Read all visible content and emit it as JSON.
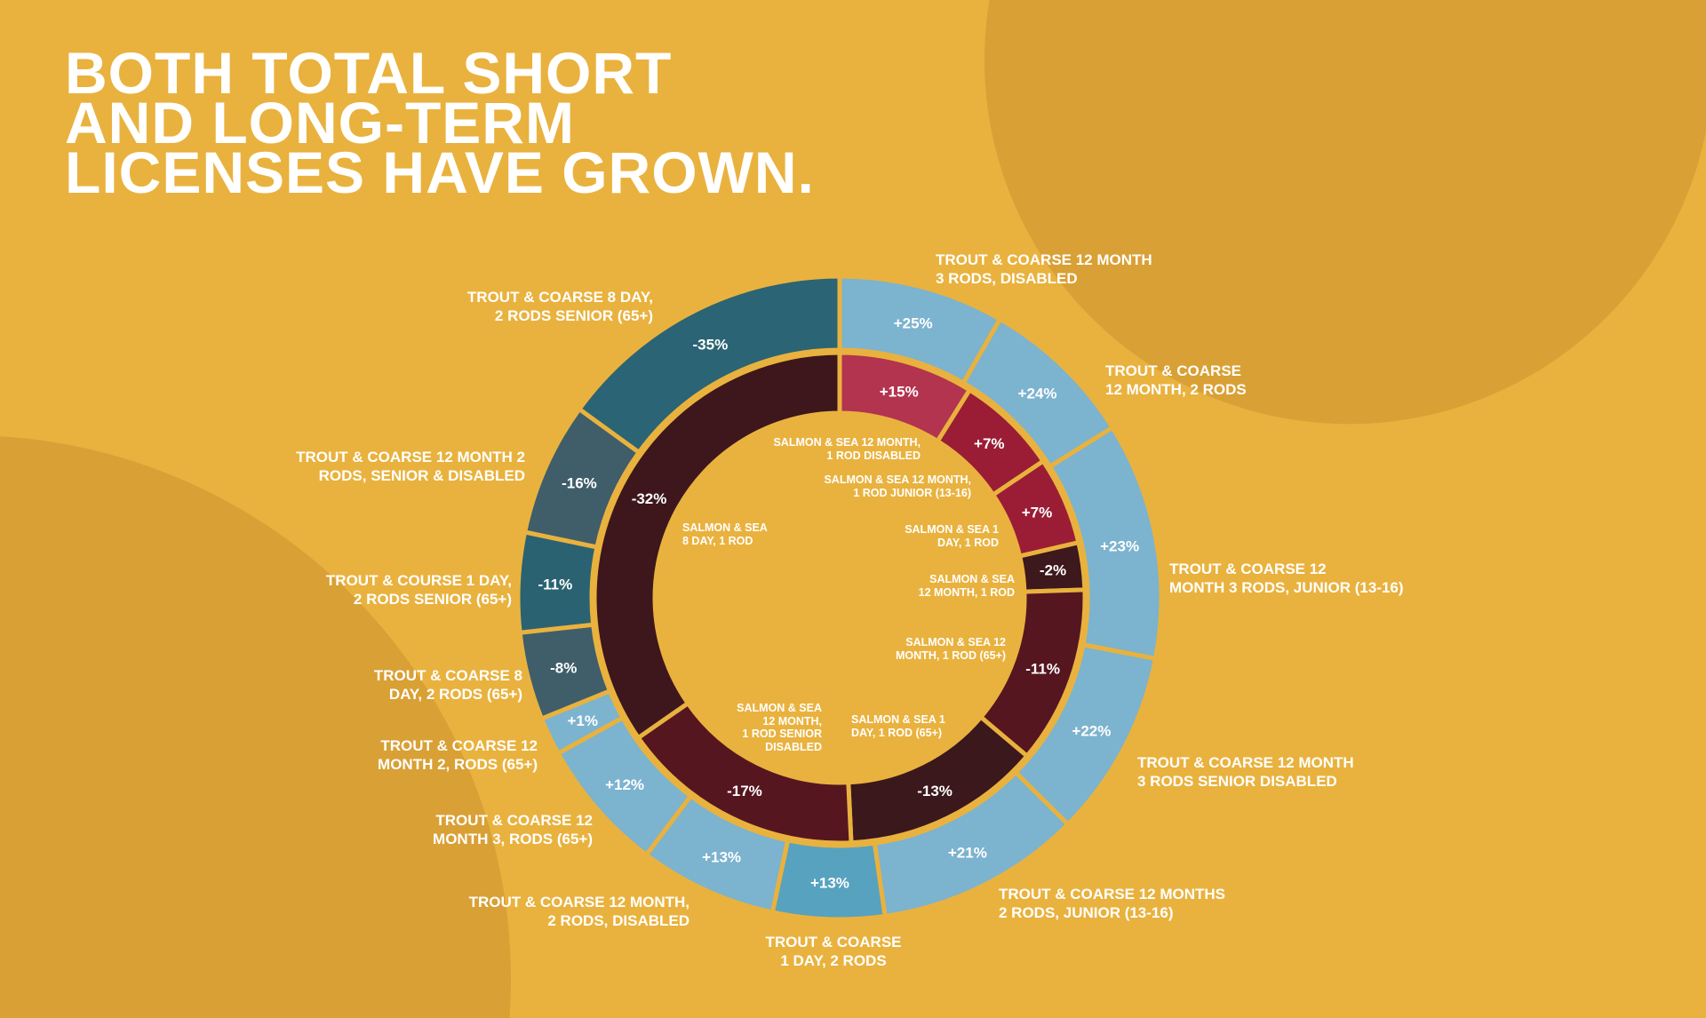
{
  "title": [
    "BOTH TOTAL SHORT",
    "AND LONG-TERM",
    "LICENSES HAVE GROWN."
  ],
  "colors": {
    "background": "#E9B23E",
    "circle": "#D9A035",
    "text": "#FFFFFF"
  },
  "chart_data": {
    "type": "pie",
    "subtype": "double donut",
    "title": "BOTH TOTAL SHORT AND LONG-TERM LICENSES HAVE GROWN.",
    "outer_ring": [
      {
        "label": "TROUT & COARSE 12 MONTH\n3 RODS, DISABLED",
        "change": "+25%",
        "share": 0.083,
        "color": "#7CB3CF"
      },
      {
        "label": "TROUT & COARSE\n12 MONTH, 2 RODS",
        "change": "+24%",
        "share": 0.078,
        "color": "#7CB3CF"
      },
      {
        "label": "TROUT & COARSE 12\nMONTH 3 RODS, JUNIOR (13-16)",
        "change": "+23%",
        "share": 0.119,
        "color": "#7CB3CF"
      },
      {
        "label": "TROUT & COARSE 12 MONTH\n3 RODS SENIOR DISABLED",
        "change": "+22%",
        "share": 0.094,
        "color": "#7CB3CF"
      },
      {
        "label": "TROUT & COARSE 12 MONTHS\n2 RODS, JUNIOR (13-16)",
        "change": "+21%",
        "share": 0.103,
        "color": "#7CB3CF"
      },
      {
        "label": "TROUT & COARSE\n1 DAY, 2 RODS",
        "change": "+13%",
        "share": 0.056,
        "color": "#57A2BE"
      },
      {
        "label": "TROUT & COARSE 12 MONTH,\n2 RODS, DISABLED",
        "change": "+13%",
        "share": 0.069,
        "color": "#7CB3CF"
      },
      {
        "label": "TROUT & COARSE 12\nMONTH 3, RODS (65+)",
        "change": "+12%",
        "share": 0.067,
        "color": "#7CB3CF"
      },
      {
        "label": "TROUT & COARSE 12\nMONTH 2, RODS (65+)",
        "change": "+1%",
        "share": 0.019,
        "color": "#7CB3CF"
      },
      {
        "label": "TROUT & COARSE 8\nDAY, 2 RODS (65+)",
        "change": "-8%",
        "share": 0.044,
        "color": "#3F5E6A"
      },
      {
        "label": "TROUT & COURSE 1 DAY,\n2 RODS SENIOR (65+)",
        "change": "-11%",
        "share": 0.05,
        "color": "#2A6272"
      },
      {
        "label": "TROUT & COARSE 12 MONTH 2\nRODS, SENIOR & DISABLED",
        "change": "-16%",
        "share": 0.067,
        "color": "#3F5E6A"
      },
      {
        "label": "TROUT & COARSE 8 DAY,\n2 RODS SENIOR (65+)",
        "change": "-35%",
        "share": 0.15,
        "color": "#2B6474"
      }
    ],
    "inner_ring": [
      {
        "label": "SALMON & SEA 12 MONTH,\n1 ROD DISABLED",
        "change": "+15%",
        "share": 0.089,
        "color": "#B2344F"
      },
      {
        "label": "SALMON & SEA 12 MONTH,\n1 ROD JUNIOR (13-16)",
        "change": "+7%",
        "share": 0.067,
        "color": "#9A1D35"
      },
      {
        "label": "SALMON & SEA 1\nDAY, 1 ROD",
        "change": "+7%",
        "share": 0.058,
        "color": "#9A1D35"
      },
      {
        "label": "SALMON & SEA\n12 MONTH, 1 ROD",
        "change": "-2%",
        "share": 0.031,
        "color": "#3D181D"
      },
      {
        "label": "SALMON & SEA 12\nMONTH, 1 ROD (65+)",
        "change": "-11%",
        "share": 0.117,
        "color": "#561620"
      },
      {
        "label": "SALMON & SEA 1\nDAY, 1 ROD (65+)",
        "change": "-13%",
        "share": 0.131,
        "color": "#3B181C"
      },
      {
        "label": "SALMON & SEA\n12 MONTH,\n1 ROD SENIOR\nDISABLED",
        "change": "-17%",
        "share": 0.161,
        "color": "#561620"
      },
      {
        "label": "SALMON & SEA\n8 DAY, 1 ROD",
        "change": "-32%",
        "share": 0.347,
        "color": "#3D171C"
      }
    ]
  }
}
